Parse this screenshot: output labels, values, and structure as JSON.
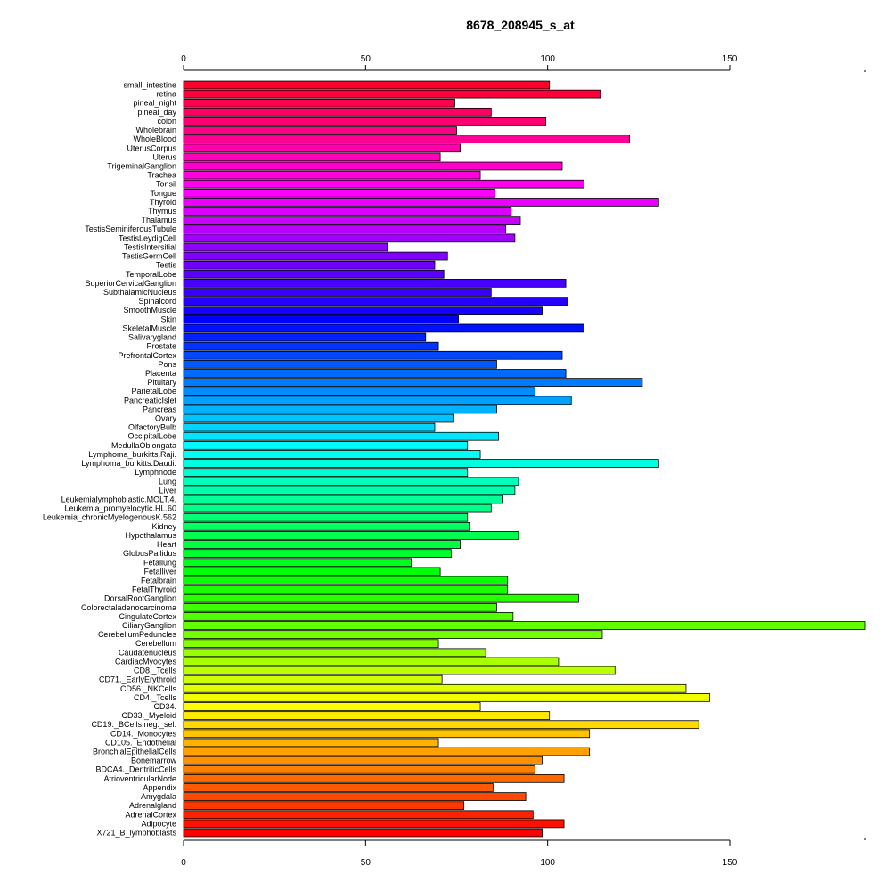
{
  "chart_data": {
    "type": "bar",
    "orientation": "horizontal",
    "title": "8678_208945_s_at",
    "xlabel": "",
    "ylabel": "",
    "xlim": [
      0,
      188
    ],
    "xticks": [
      0,
      50,
      100,
      150
    ],
    "grid": false,
    "categories": [
      "small_intestine",
      "retina",
      "pineal_night",
      "pineal_day",
      "colon",
      "Wholebrain",
      "WholeBlood",
      "UterusCorpus",
      "Uterus",
      "TrigeminalGanglion",
      "Trachea",
      "Tonsil",
      "Tongue",
      "Thyroid",
      "Thymus",
      "Thalamus",
      "TestisSeminiferousTubule",
      "TestisLeydigCell",
      "TestisIntersitial",
      "TestisGermCell",
      "Testis",
      "TemporalLobe",
      "SuperiorCervicalGanglion",
      "SubthalamicNucleus",
      "Spinalcord",
      "SmoothMuscle",
      "Skin",
      "SkeletalMuscle",
      "Salivarygland",
      "Prostate",
      "PrefrontalCortex",
      "Pons",
      "Placenta",
      "Pituitary",
      "ParietalLobe",
      "PancreaticIslet",
      "Pancreas",
      "Ovary",
      "OlfactoryBulb",
      "OccipitalLobe",
      "MedullaOblongata",
      "Lymphoma_burkitts.Raji.",
      "Lymphoma_burkitts.Daudi.",
      "Lymphnode",
      "Lung",
      "Liver",
      "Leukemialymphoblastic.MOLT.4.",
      "Leukemia_promyelocytic.HL.60",
      "Leukemia_chronicMyelogenousK.562",
      "Kidney",
      "Hypothalamus",
      "Heart",
      "GlobusPallidus",
      "Fetallung",
      "Fetalliver",
      "Fetalbrain",
      "FetalThyroid",
      "DorsalRootGanglion",
      "Colorectaladenocarcinoma",
      "CingulateCortex",
      "CiliaryGanglion",
      "CerebellumPeduncles",
      "Cerebellum",
      "Caudatenucleus",
      "CardiacMyocytes",
      "CD8._Tcells",
      "CD71._EarlyErythroid",
      "CD56._NKCells",
      "CD4._Tcells",
      "CD34.",
      "CD33._Myeloid",
      "CD19._BCells.neg._sel.",
      "CD14._Monocytes",
      "CD105._Endothelial",
      "BronchialEpithelialCells",
      "Bonemarrow",
      "BDCA4._DentriticCells",
      "AtrioventricularNode",
      "Appendix",
      "Amygdala",
      "Adrenalgland",
      "AdrenalCortex",
      "Adipocyte",
      "X721_B_lymphoblasts"
    ],
    "values": [
      100.5,
      114.5,
      74.5,
      84.5,
      99.5,
      75.0,
      122.5,
      76.0,
      70.5,
      104.0,
      81.5,
      110.0,
      85.5,
      130.5,
      90.0,
      92.5,
      88.5,
      91.0,
      56.0,
      72.5,
      69.0,
      71.5,
      105.0,
      84.5,
      105.5,
      98.5,
      75.5,
      110.0,
      66.5,
      70.0,
      104.0,
      86.0,
      105.0,
      126.0,
      96.5,
      106.5,
      86.0,
      74.0,
      69.0,
      86.5,
      78.0,
      81.5,
      130.5,
      78.0,
      92.0,
      91.0,
      87.5,
      84.5,
      78.0,
      78.5,
      92.0,
      76.0,
      73.5,
      62.5,
      70.5,
      89.0,
      89.0,
      108.5,
      86.0,
      90.5,
      187.5,
      115.0,
      70.0,
      83.0,
      103.0,
      118.5,
      71.0,
      138.0,
      144.5,
      81.5,
      100.5,
      141.5,
      111.5,
      70.0,
      111.5,
      98.5,
      96.5,
      104.5,
      85.0,
      94.0,
      77.0,
      96.0,
      104.5,
      98.5
    ]
  }
}
